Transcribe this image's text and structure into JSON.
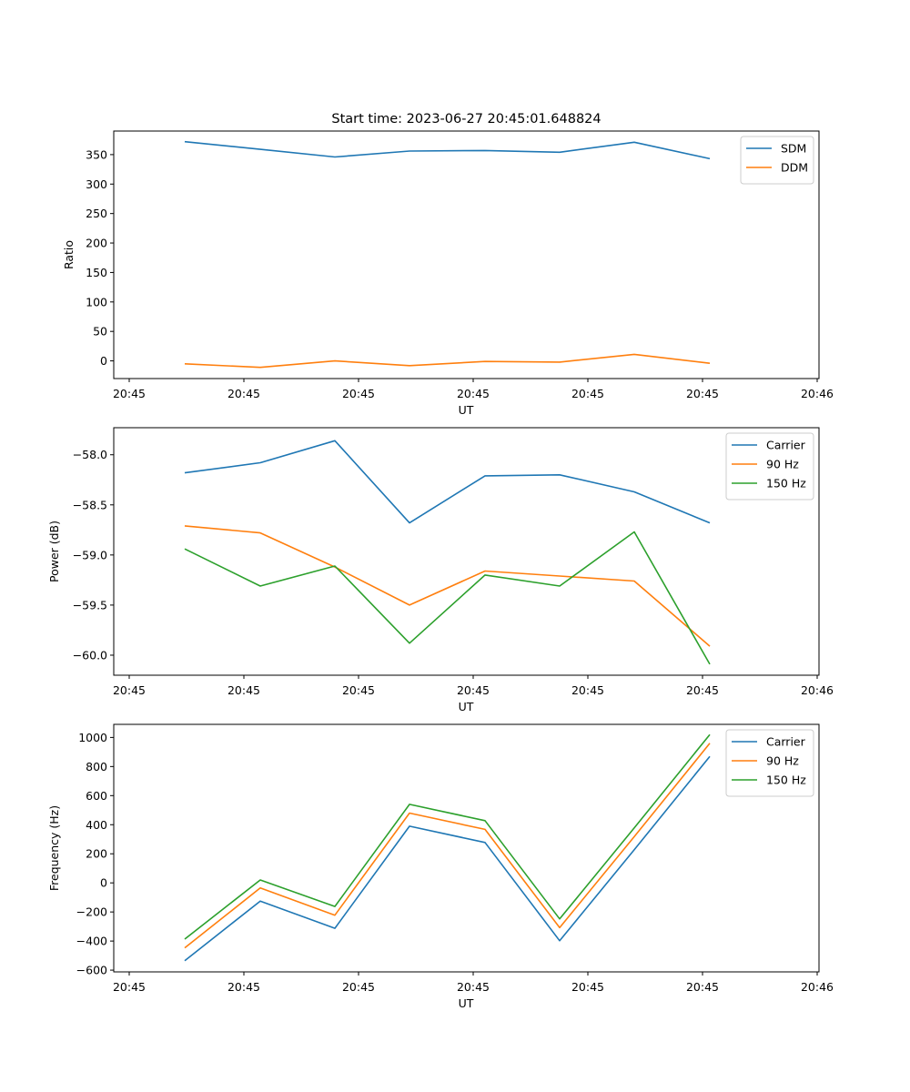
{
  "figure": {
    "title": "Start time: 2023-06-27 20:45:01.648824"
  },
  "colors": {
    "blue": "#1f77b4",
    "orange": "#ff7f0e",
    "green": "#2ca02c"
  },
  "chart_data": [
    {
      "type": "line",
      "title": "Start time: 2023-06-27 20:45:01.648824",
      "xlabel": "UT",
      "ylabel": "Ratio",
      "x_ticks": [
        "20:45",
        "20:45",
        "20:45",
        "20:45",
        "20:45",
        "20:45",
        "20:46"
      ],
      "y_ticks": [
        0,
        50,
        100,
        150,
        200,
        250,
        300,
        350
      ],
      "ylim": [
        -30,
        390
      ],
      "legend_position": "top-right",
      "grid": false,
      "series": [
        {
          "name": "SDM",
          "color": "blue",
          "values": [
            372,
            359,
            346,
            356,
            357,
            354,
            371,
            343
          ]
        },
        {
          "name": "DDM",
          "color": "orange",
          "values": [
            -5,
            -11,
            0,
            -8,
            -1,
            -2,
            11,
            -4
          ]
        }
      ]
    },
    {
      "type": "line",
      "title": "",
      "xlabel": "UT",
      "ylabel": "Power (dB)",
      "x_ticks": [
        "20:45",
        "20:45",
        "20:45",
        "20:45",
        "20:45",
        "20:45",
        "20:46"
      ],
      "y_ticks": [
        -60.0,
        -59.5,
        -59.0,
        -58.5,
        -58.0
      ],
      "y_tick_labels": [
        "−60.0",
        "−59.5",
        "−59.0",
        "−58.5",
        "−58.0"
      ],
      "ylim": [
        -60.2,
        -57.73
      ],
      "legend_position": "top-right",
      "grid": false,
      "series": [
        {
          "name": "Carrier",
          "color": "blue",
          "values": [
            -58.18,
            -58.08,
            -57.86,
            -58.68,
            -58.21,
            -58.2,
            -58.37,
            -58.68
          ]
        },
        {
          "name": "90 Hz",
          "color": "orange",
          "values": [
            -58.71,
            -58.78,
            -59.12,
            -59.5,
            -59.16,
            -59.21,
            -59.26,
            -59.91
          ]
        },
        {
          "name": "150 Hz",
          "color": "green",
          "values": [
            -58.94,
            -59.31,
            -59.11,
            -59.88,
            -59.2,
            -59.31,
            -58.77,
            -60.09
          ]
        }
      ]
    },
    {
      "type": "line",
      "title": "",
      "xlabel": "UT",
      "ylabel": "Frequency (Hz)",
      "x_ticks": [
        "20:45",
        "20:45",
        "20:45",
        "20:45",
        "20:45",
        "20:45",
        "20:46"
      ],
      "y_ticks": [
        -600,
        -400,
        -200,
        0,
        200,
        400,
        600,
        800,
        1000
      ],
      "y_tick_labels": [
        "−600",
        "−400",
        "−200",
        "0",
        "200",
        "400",
        "600",
        "800",
        "1000"
      ],
      "ylim": [
        -612,
        1090
      ],
      "legend_position": "top-right",
      "grid": false,
      "series": [
        {
          "name": "Carrier",
          "color": "blue",
          "values": [
            -535,
            -125,
            -312,
            390,
            278,
            -398,
            228,
            870
          ]
        },
        {
          "name": "90 Hz",
          "color": "orange",
          "values": [
            -447,
            -35,
            -222,
            480,
            368,
            -308,
            318,
            960
          ]
        },
        {
          "name": "150 Hz",
          "color": "green",
          "values": [
            -387,
            20,
            -162,
            540,
            428,
            -248,
            378,
            1020
          ]
        }
      ]
    }
  ]
}
